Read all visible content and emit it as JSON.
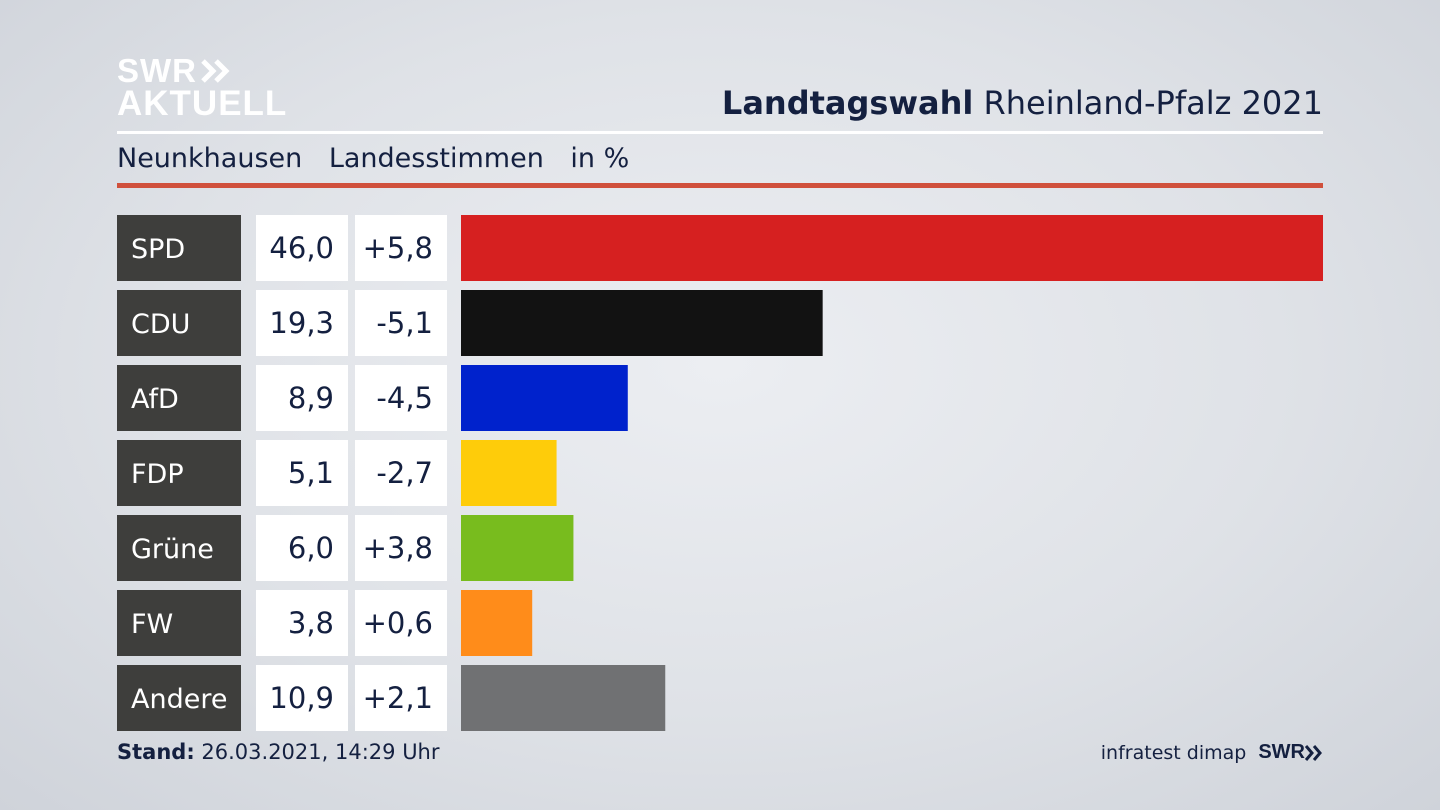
{
  "logo": {
    "line1": "SWR",
    "line2": "AKTUELL",
    "icon": "double-chevron-right-icon"
  },
  "header": {
    "title_bold": "Landtagswahl",
    "title_rest": "Rheinland-Pfalz 2021"
  },
  "subheader": {
    "place": "Neunkhausen",
    "type": "Landesstimmen",
    "unit": "in %"
  },
  "footer": {
    "stand_label": "Stand:",
    "stand_value": "26.03.2021, 14:29 Uhr",
    "source": "infratest dimap",
    "brand": "SWR"
  },
  "colors": {
    "rule_red": "#d0503c",
    "label_bg": "#3e3e3c",
    "value_bg": "#ffffff",
    "text": "#142040"
  },
  "chart_data": {
    "type": "bar",
    "orientation": "horizontal",
    "categories": [
      "SPD",
      "CDU",
      "AfD",
      "FDP",
      "Grüne",
      "FW",
      "Andere"
    ],
    "values": [
      46.0,
      19.3,
      8.9,
      5.1,
      6.0,
      3.8,
      10.9
    ],
    "value_labels": [
      "46,0",
      "19,3",
      "8,9",
      "5,1",
      "6,0",
      "3,8",
      "10,9"
    ],
    "changes": [
      5.8,
      -5.1,
      -4.5,
      -2.7,
      3.8,
      0.6,
      2.1
    ],
    "change_labels": [
      "+5,8",
      "-5,1",
      "-4,5",
      "-2,7",
      "+3,8",
      "+0,6",
      "+2,1"
    ],
    "colors": [
      "#d62020",
      "#121212",
      "#0022cc",
      "#fecc0a",
      "#78bc1e",
      "#ff8c1a",
      "#707173"
    ],
    "xlim": [
      0,
      46.0
    ],
    "grid": false,
    "legend": "none"
  }
}
